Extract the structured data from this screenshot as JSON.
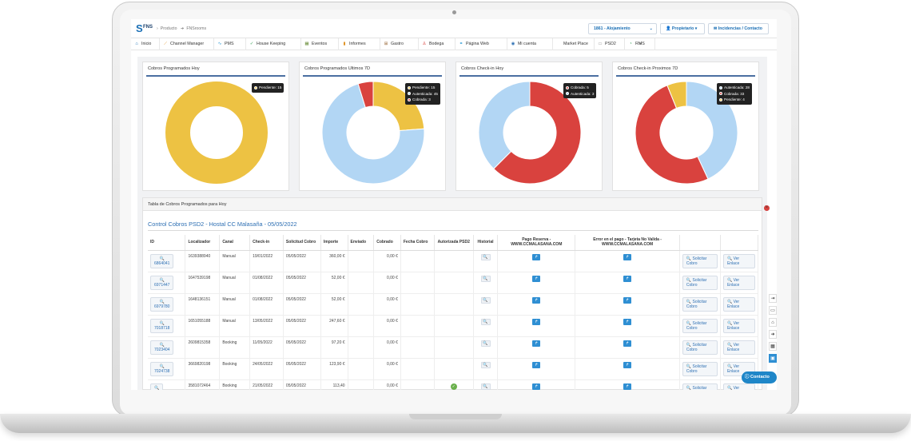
{
  "brand": {
    "logo_text": "FNS"
  },
  "breadcrumb": {
    "items": [
      "Producto",
      "FNSrooms"
    ]
  },
  "topbar": {
    "alojamiento_label": "1861 - Alojamiento",
    "propietario_label": "Propietario",
    "incidencias_label": "Incidencias / Contacto"
  },
  "nav": {
    "items": [
      {
        "label": "Inicio",
        "icon": "home-icon"
      },
      {
        "label": "Channel Manager",
        "icon": "channel-manager-icon"
      },
      {
        "label": "PMS",
        "icon": "pms-icon"
      },
      {
        "label": "House Keeping",
        "icon": "housekeeping-icon"
      },
      {
        "label": "Eventos",
        "icon": "events-icon"
      },
      {
        "label": "Informes",
        "icon": "reports-icon"
      },
      {
        "label": "Gastro",
        "icon": "gastro-icon"
      },
      {
        "label": "Bodega",
        "icon": "bodega-icon"
      },
      {
        "label": "Página Web",
        "icon": "website-icon"
      },
      {
        "label": "Mi cuenta",
        "icon": "account-icon"
      },
      {
        "label": "Market Place",
        "icon": "marketplace-icon"
      },
      {
        "label": "PSD2",
        "icon": "psd2-icon"
      },
      {
        "label": "RMS",
        "icon": "rms-icon"
      }
    ]
  },
  "colors": {
    "pendiente": "#EDC243",
    "autenticada": "#B2D6F4",
    "cobrada": "#D9423E",
    "accent": "#2D6FB3"
  },
  "chart_data": [
    {
      "type": "pie",
      "title": "Cobros Programados Hoy",
      "donut": true,
      "series": [
        {
          "name": "Pendiente",
          "value": 15
        }
      ]
    },
    {
      "type": "pie",
      "title": "Cobros Programados Ultimos 7D",
      "donut": true,
      "series": [
        {
          "name": "Pendiente",
          "value": 15
        },
        {
          "name": "Autenticada",
          "value": 45
        },
        {
          "name": "Cobrada",
          "value": 3
        }
      ]
    },
    {
      "type": "pie",
      "title": "Cobros Check-in Hoy",
      "donut": true,
      "series": [
        {
          "name": "Cobrada",
          "value": 5
        },
        {
          "name": "Autenticada",
          "value": 3
        }
      ]
    },
    {
      "type": "pie",
      "title": "Cobros Check-in Proximos 7D",
      "donut": true,
      "series": [
        {
          "name": "Autenticada",
          "value": 28
        },
        {
          "name": "Cobrada",
          "value": 33
        },
        {
          "name": "Pendiente",
          "value": 4
        }
      ]
    }
  ],
  "table_panel": {
    "title": "Tabla de Cobros Programados para Hoy",
    "control_title": "Control Cobros PSD2 - Hostal CC Malasaña - 05/05/2022",
    "columns": [
      "ID",
      "Localizador",
      "Canal",
      "Check-in",
      "Solicitud Cobro",
      "Importe",
      "Enviado",
      "Cobrado",
      "Fecha Cobro",
      "Autorizada PSD2",
      "Historial",
      "Pago Reserva - WWW.CCMALASANA.COM",
      "Error en el pago - Tarjeta No Valida - WWW.CCMALASANA.COM",
      "",
      ""
    ],
    "action_solicitar": "Solicitar Cobro",
    "action_ver": "Ver Enlace",
    "rows": [
      {
        "id": "6864041",
        "localizador": "1639388940",
        "canal": "Manual",
        "checkin": "19/01/2022",
        "solicitud": "05/05/2022",
        "importe": "360,00 €",
        "cobrado": "0,00 €",
        "autorizada": false
      },
      {
        "id": "6971447",
        "localizador": "1647539198",
        "canal": "Manual",
        "checkin": "01/08/2022",
        "solicitud": "05/05/2022",
        "importe": "52,00 €",
        "cobrado": "0,00 €",
        "autorizada": false
      },
      {
        "id": "6979780",
        "localizador": "1648136151",
        "canal": "Manual",
        "checkin": "01/08/2022",
        "solicitud": "05/05/2022",
        "importe": "52,00 €",
        "cobrado": "0,00 €",
        "autorizada": false
      },
      {
        "id": "7018718",
        "localizador": "1651055188",
        "canal": "Manual",
        "checkin": "13/05/2022",
        "solicitud": "05/05/2022",
        "importe": "247,60 €",
        "cobrado": "0,00 €",
        "autorizada": false
      },
      {
        "id": "7023404",
        "localizador": "2609815358",
        "canal": "Booking",
        "checkin": "11/05/2022",
        "solicitud": "05/05/2022",
        "importe": "97,20 €",
        "cobrado": "0,00 €",
        "autorizada": false
      },
      {
        "id": "7024738",
        "localizador": "3669820198",
        "canal": "Booking",
        "checkin": "24/05/2022",
        "solicitud": "05/05/2022",
        "importe": "123,90 €",
        "cobrado": "0,00 €",
        "autorizada": false
      },
      {
        "id": "",
        "localizador": "3581072464",
        "canal": "Booking",
        "checkin": "21/05/2022",
        "solicitud": "05/05/2022",
        "importe": "113,40",
        "cobrado": "0,00 €",
        "autorizada": true
      }
    ]
  },
  "contact_button": "Contacto"
}
